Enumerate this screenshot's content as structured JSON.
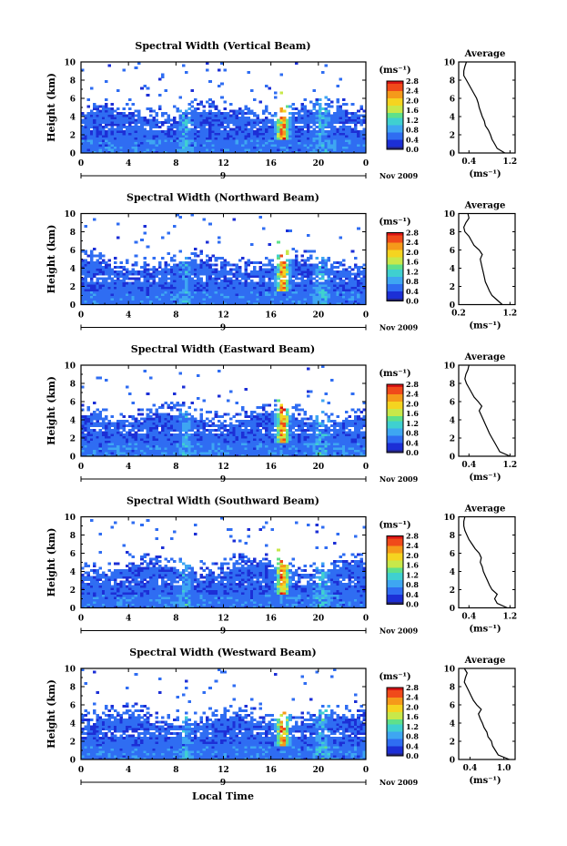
{
  "figure": {
    "xlabel": "Local Time",
    "colorbar_unit": "(ms⁻¹)",
    "colorbar_ticks": [
      "2.8",
      "2.4",
      "2.0",
      "1.6",
      "1.2",
      "0.8",
      "0.4",
      "0.0"
    ],
    "date_label": "Nov 2009",
    "day_label": "9",
    "average_title": "Average",
    "average_xlabel": "(ms⁻¹)",
    "time_ticks": [
      "0",
      "4",
      "8",
      "12",
      "16",
      "20",
      "0"
    ],
    "height_ticks": [
      "0",
      "2",
      "4",
      "6",
      "8",
      "10"
    ],
    "ylabel": "Height (km)"
  },
  "colors": {
    "scale": [
      "#23237a",
      "#1c2fd6",
      "#2f6df2",
      "#3ea6f2",
      "#3fd0d0",
      "#5fe08a",
      "#c8e84a",
      "#f5d420",
      "#f59a1a",
      "#f04a1a",
      "#d81414"
    ]
  },
  "chart_data": [
    {
      "type": "heatmap",
      "title": "Spectral Width (Vertical Beam)",
      "xlabel": "Local Time",
      "ylabel": "Height (km)",
      "xlim": [
        0,
        24
      ],
      "ylim": [
        0,
        10
      ],
      "clim": [
        0.0,
        2.8
      ],
      "profile": {
        "type": "line",
        "title": "Average",
        "xlabel": "(ms⁻¹)",
        "xticks": [
          "0.4",
          "1.2"
        ],
        "xlim": [
          0.2,
          1.3
        ],
        "y": [
          0,
          0.5,
          1,
          1.5,
          2,
          2.5,
          3,
          3.5,
          4,
          4.5,
          5,
          5.5,
          6,
          6.5,
          7,
          7.5,
          8,
          8.5,
          9,
          9.5,
          10
        ],
        "x": [
          1.1,
          0.95,
          0.9,
          0.85,
          0.82,
          0.78,
          0.72,
          0.7,
          0.66,
          0.63,
          0.6,
          0.58,
          0.55,
          0.5,
          0.45,
          0.4,
          0.35,
          0.3,
          0.3,
          0.32,
          0.35
        ]
      }
    },
    {
      "type": "heatmap",
      "title": "Spectral Width (Northward Beam)",
      "xlabel": "Local Time",
      "ylabel": "Height (km)",
      "xlim": [
        0,
        24
      ],
      "ylim": [
        0,
        10
      ],
      "clim": [
        0.0,
        2.8
      ],
      "profile": {
        "type": "line",
        "title": "Average",
        "xlabel": "(ms⁻¹)",
        "xticks": [
          "0.2",
          "1.2"
        ],
        "xlim": [
          0.2,
          1.3
        ],
        "y": [
          0,
          0.5,
          1,
          1.5,
          2,
          2.5,
          3,
          3.5,
          4,
          4.5,
          5,
          5.5,
          6,
          6.5,
          7,
          7.5,
          8,
          8.5,
          9,
          9.5,
          10
        ],
        "x": [
          1.05,
          0.95,
          0.85,
          0.8,
          0.76,
          0.72,
          0.7,
          0.68,
          0.66,
          0.64,
          0.62,
          0.66,
          0.6,
          0.5,
          0.45,
          0.4,
          0.32,
          0.3,
          0.34,
          0.4,
          0.38
        ]
      }
    },
    {
      "type": "heatmap",
      "title": "Spectral Width (Eastward Beam)",
      "xlabel": "Local Time",
      "ylabel": "Height (km)",
      "xlim": [
        0,
        24
      ],
      "ylim": [
        0,
        10
      ],
      "clim": [
        0.0,
        2.8
      ],
      "profile": {
        "type": "line",
        "title": "Average",
        "xlabel": "(ms⁻¹)",
        "xticks": [
          "0.4",
          "1.2"
        ],
        "xlim": [
          0.2,
          1.3
        ],
        "y": [
          0,
          0.5,
          1,
          1.5,
          2,
          2.5,
          3,
          3.5,
          4,
          4.5,
          5,
          5.5,
          6,
          6.5,
          7,
          7.5,
          8,
          8.5,
          9,
          9.5,
          10
        ],
        "x": [
          1.2,
          1.0,
          0.95,
          0.9,
          0.85,
          0.8,
          0.76,
          0.72,
          0.68,
          0.64,
          0.6,
          0.65,
          0.58,
          0.5,
          0.45,
          0.4,
          0.35,
          0.32,
          0.34,
          0.38,
          0.4
        ]
      }
    },
    {
      "type": "heatmap",
      "title": "Spectral Width (Southward Beam)",
      "xlabel": "Local Time",
      "ylabel": "Height (km)",
      "xlim": [
        0,
        24
      ],
      "ylim": [
        0,
        10
      ],
      "clim": [
        0.0,
        2.8
      ],
      "profile": {
        "type": "line",
        "title": "Average",
        "xlabel": "(ms⁻¹)",
        "xticks": [
          "0.4",
          "1.2"
        ],
        "xlim": [
          0.2,
          1.3
        ],
        "y": [
          0,
          0.5,
          1,
          1.5,
          2,
          2.5,
          3,
          3.5,
          4,
          4.5,
          5,
          5.5,
          6,
          6.5,
          7,
          7.5,
          8,
          8.5,
          9,
          9.5,
          10
        ],
        "x": [
          1.15,
          0.95,
          0.9,
          0.95,
          0.85,
          0.8,
          0.76,
          0.72,
          0.68,
          0.66,
          0.62,
          0.64,
          0.6,
          0.52,
          0.46,
          0.4,
          0.36,
          0.32,
          0.3,
          0.3,
          0.32
        ]
      }
    },
    {
      "type": "heatmap",
      "title": "Spectral Width (Westward Beam)",
      "xlabel": "Local Time",
      "ylabel": "Height (km)",
      "xlim": [
        0,
        24
      ],
      "ylim": [
        0,
        10
      ],
      "clim": [
        0.0,
        2.8
      ],
      "profile": {
        "type": "line",
        "title": "Average",
        "xlabel": "(ms⁻¹)",
        "xticks": [
          "0.4",
          "1.0"
        ],
        "xlim": [
          0.2,
          1.2
        ],
        "y": [
          0,
          0.5,
          1,
          1.5,
          2,
          2.5,
          3,
          3.5,
          4,
          4.5,
          5,
          5.5,
          6,
          6.5,
          7,
          7.5,
          8,
          8.5,
          9,
          9.5,
          10
        ],
        "x": [
          1.1,
          0.9,
          0.85,
          0.8,
          0.78,
          0.72,
          0.7,
          0.65,
          0.62,
          0.58,
          0.55,
          0.6,
          0.52,
          0.46,
          0.42,
          0.38,
          0.34,
          0.3,
          0.32,
          0.35,
          0.3
        ]
      }
    }
  ]
}
